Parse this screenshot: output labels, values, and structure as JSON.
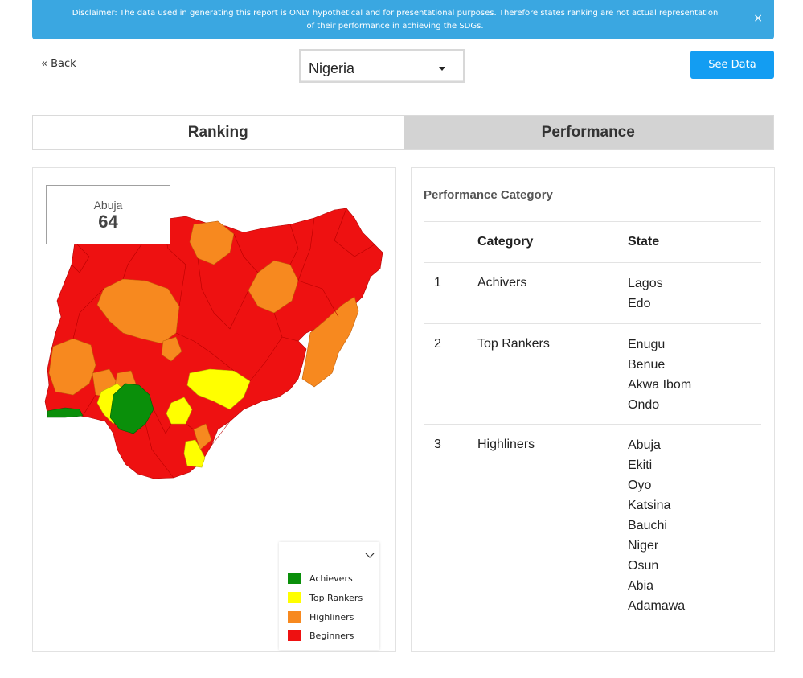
{
  "disclaimer": {
    "line1": "Disclaimer: The data used in generating this report is ONLY hypothetical and for presentational purposes. Therefore states ranking are not actual representation",
    "line2": "of their performance in achieving the SDGs.",
    "close_glyph": "×"
  },
  "nav": {
    "back_label": "« Back",
    "country_selected": "Nigeria",
    "see_data_label": "See Data"
  },
  "tabs": [
    {
      "label": "Ranking",
      "active": true
    },
    {
      "label": "Performance",
      "active": false
    }
  ],
  "map": {
    "tooltip": {
      "state": "Abuja",
      "value": "64"
    },
    "legend": [
      {
        "label": "Achievers",
        "color": "#0a8f0a"
      },
      {
        "label": "Top Rankers",
        "color": "#ffff00"
      },
      {
        "label": "Highliners",
        "color": "#f7891f"
      },
      {
        "label": "Beginners",
        "color": "#ee1111"
      }
    ],
    "legend_toggle_icon": "chevron-down-icon"
  },
  "performance": {
    "title": "Performance Category",
    "columns": [
      "Category",
      "State"
    ],
    "rows": [
      {
        "num": "1",
        "category": "Achivers",
        "states": [
          "Lagos",
          "Edo"
        ]
      },
      {
        "num": "2",
        "category": "Top Rankers",
        "states": [
          "Enugu",
          "Benue",
          "Akwa Ibom",
          "Ondo"
        ]
      },
      {
        "num": "3",
        "category": "Highliners",
        "states": [
          "Abuja",
          "Ekiti",
          "Oyo",
          "Katsina",
          "Bauchi",
          "Niger",
          "Osun",
          "Abia",
          "Adamawa"
        ]
      }
    ]
  },
  "colors": {
    "banner": "#3aa7e1",
    "button": "#139df2",
    "achievers": "#0a8f0a",
    "top_rankers": "#ffff00",
    "highliners": "#f7891f",
    "beginners": "#ee1111"
  }
}
